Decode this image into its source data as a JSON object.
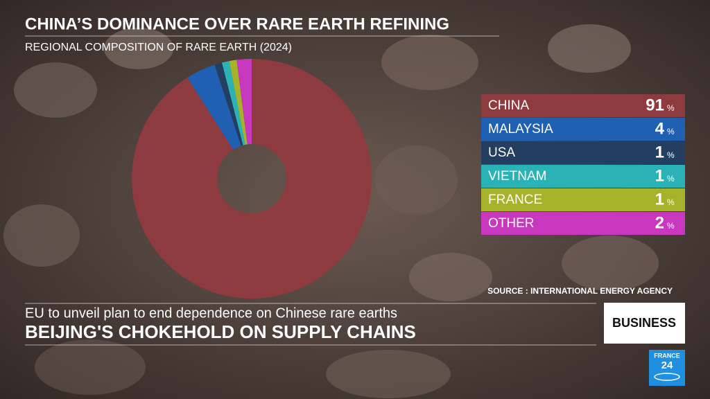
{
  "chart_data": {
    "type": "donut",
    "title": "CHINA’S DOMINANCE OVER RARE EARTH REFINING",
    "subtitle": "REGIONAL COMPOSITION OF RARE EARTH (2024)",
    "categories": [
      "CHINA",
      "MALAYSIA",
      "USA",
      "VIETNAM",
      "FRANCE",
      "OTHER"
    ],
    "values": [
      91,
      4,
      1,
      1,
      1,
      2
    ],
    "colors": [
      "#8d3b3f",
      "#2060b2",
      "#233e60",
      "#2ab2b6",
      "#a7b22b",
      "#c738bf"
    ],
    "unit": "%",
    "source": "SOURCE : INTERNATIONAL ENERGY AGENCY"
  },
  "overlay": {
    "headline": "EU to unveil plan to end dependence on Chinese rare earths",
    "subheadline": "BEIJING'S CHOKEHOLD ON SUPPLY CHAINS",
    "section": "BUSINESS",
    "logo": [
      "FRANCE",
      "24"
    ]
  }
}
